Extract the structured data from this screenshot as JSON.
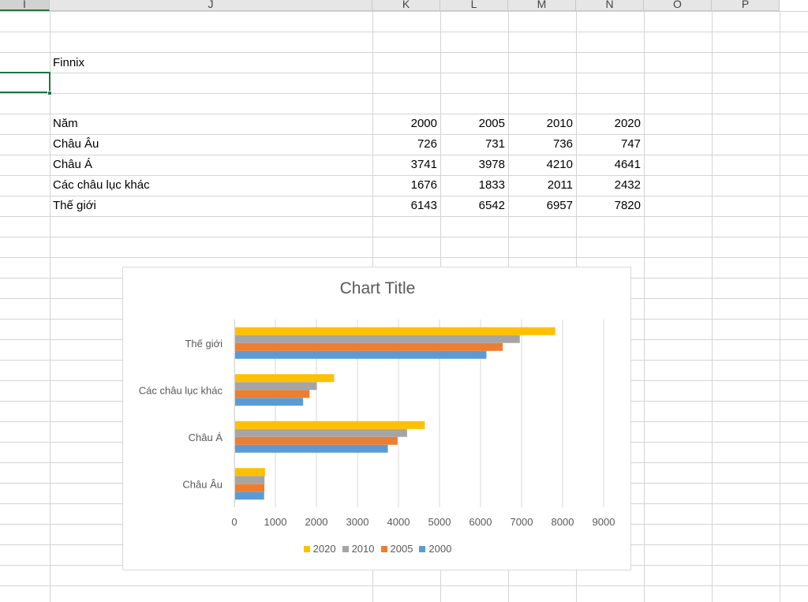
{
  "columns": [
    {
      "id": "I",
      "label": "I"
    },
    {
      "id": "J",
      "label": "J"
    },
    {
      "id": "K",
      "label": "K"
    },
    {
      "id": "L",
      "label": "L"
    },
    {
      "id": "M",
      "label": "M"
    },
    {
      "id": "N",
      "label": "N"
    },
    {
      "id": "O",
      "label": "O"
    },
    {
      "id": "P",
      "label": "P"
    }
  ],
  "sheet": {
    "label_cell": "Finnix",
    "table": {
      "header": {
        "label": "Năm",
        "values": [
          "2000",
          "2005",
          "2010",
          "2020"
        ]
      },
      "rows": [
        {
          "label": "Châu Âu",
          "values": [
            "726",
            "731",
            "736",
            "747"
          ]
        },
        {
          "label": "Châu Á",
          "values": [
            "3741",
            "3978",
            "4210",
            "4641"
          ]
        },
        {
          "label": "Các châu lục khác",
          "values": [
            "1676",
            "1833",
            "2011",
            "2432"
          ]
        },
        {
          "label": "Thế giới",
          "values": [
            "6143",
            "6542",
            "6957",
            "7820"
          ]
        }
      ]
    }
  },
  "chart_data": {
    "type": "bar",
    "orientation": "horizontal",
    "title": "Chart Title",
    "categories": [
      "Châu Âu",
      "Châu Á",
      "Các châu lục khác",
      "Thế giới"
    ],
    "series": [
      {
        "name": "2000",
        "color": "#5B9BD5",
        "values": [
          726,
          3741,
          1676,
          6143
        ]
      },
      {
        "name": "2005",
        "color": "#ED7D31",
        "values": [
          731,
          3978,
          1833,
          6542
        ]
      },
      {
        "name": "2010",
        "color": "#A5A5A5",
        "values": [
          736,
          4210,
          2011,
          6957
        ]
      },
      {
        "name": "2020",
        "color": "#FFC000",
        "values": [
          747,
          4641,
          2432,
          7820
        ]
      }
    ],
    "xlim": [
      0,
      9000
    ],
    "xticks": [
      "0",
      "1000",
      "2000",
      "3000",
      "4000",
      "5000",
      "6000",
      "7000",
      "8000",
      "9000"
    ],
    "grid": true,
    "legend_position": "bottom",
    "legend_order": [
      "2020",
      "2010",
      "2005",
      "2000"
    ]
  },
  "colors": {
    "selection": "#217346",
    "gridline": "#d4d4d4",
    "chart_gridline": "#d9d9d9",
    "axis_text": "#595959"
  }
}
